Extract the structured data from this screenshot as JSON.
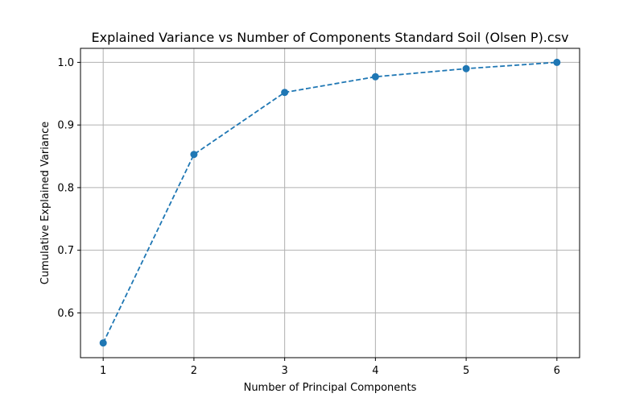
{
  "chart_data": {
    "type": "line",
    "title": "Explained Variance vs Number of Components Standard Soil (Olsen P).csv",
    "xlabel": "Number of Principal Components",
    "ylabel": "Cumulative Explained Variance",
    "x": [
      1,
      2,
      3,
      4,
      5,
      6
    ],
    "x_ticks": [
      "1",
      "2",
      "3",
      "4",
      "5",
      "6"
    ],
    "y_ticks": [
      "0.6",
      "0.7",
      "0.8",
      "0.9",
      "1.0"
    ],
    "series": [
      {
        "values": [
          0.552,
          0.853,
          0.952,
          0.977,
          0.99,
          1.0
        ],
        "color": "#1f77b4",
        "line_style": "dashed",
        "marker": "circle"
      }
    ],
    "xlim": [
      0.75,
      6.25
    ],
    "ylim": [
      0.5285,
      1.0224
    ],
    "grid": true,
    "legend": "none"
  }
}
